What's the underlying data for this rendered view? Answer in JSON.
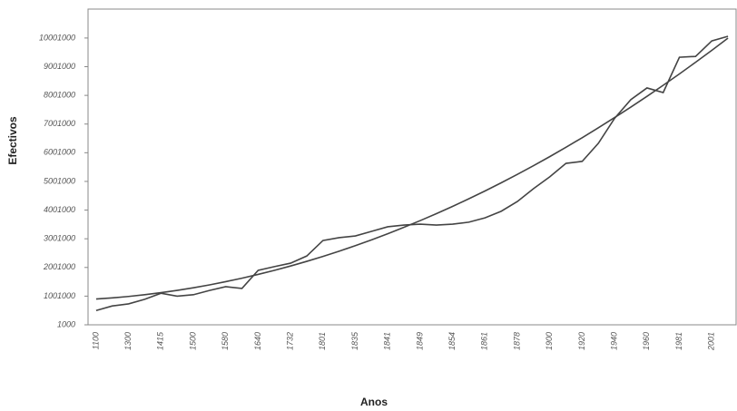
{
  "chart_data": {
    "type": "line",
    "y_label": "Efectivos",
    "x_label": "Anos",
    "categories": [
      "1100",
      null,
      "1300",
      null,
      "1415",
      null,
      "1500",
      null,
      "1580",
      null,
      "1640",
      null,
      "1732",
      null,
      "1801",
      null,
      "1835",
      null,
      "1841",
      null,
      "1849",
      null,
      "1854",
      null,
      "1861",
      null,
      "1878",
      null,
      "1900",
      null,
      "1920",
      null,
      "1940",
      null,
      "1960",
      null,
      "1981",
      null,
      "2001",
      null
    ],
    "series": [
      {
        "color": "#444444",
        "values": [
          500000,
          660000,
          730000,
          890000,
          1100000,
          1000000,
          1050000,
          1200000,
          1330000,
          1270000,
          1900000,
          2030000,
          2150000,
          2400000,
          2940000,
          3040000,
          3100000,
          3260000,
          3420000,
          3480000,
          3510000,
          3480000,
          3510000,
          3580000,
          3730000,
          3960000,
          4300000,
          4750000,
          5160000,
          5630000,
          5700000,
          6330000,
          7200000,
          7850000,
          8260000,
          8100000,
          9330000,
          9360000,
          9900000,
          10060000
        ]
      },
      {
        "color": "#444444",
        "values": [
          900000,
          940000,
          990000,
          1051000,
          1121000,
          1202000,
          1293000,
          1393000,
          1505000,
          1626000,
          1758000,
          1899000,
          2051000,
          2213000,
          2386000,
          2568000,
          2761000,
          2963000,
          3176000,
          3400000,
          3633000,
          3876000,
          4130000,
          4394000,
          4668000,
          4952000,
          5246000,
          5550000,
          5865000,
          6190000,
          6525000,
          6870000,
          7226000,
          7591000,
          7967000,
          8353000,
          8749000,
          9155000,
          9571000,
          9998000
        ]
      }
    ],
    "ylim": [
      1000,
      11010000
    ],
    "yticks": [
      1000,
      1001000,
      2001000,
      3001000,
      4001000,
      5001000,
      6001000,
      7001000,
      8001000,
      9001000,
      10001000
    ],
    "grid": false
  }
}
